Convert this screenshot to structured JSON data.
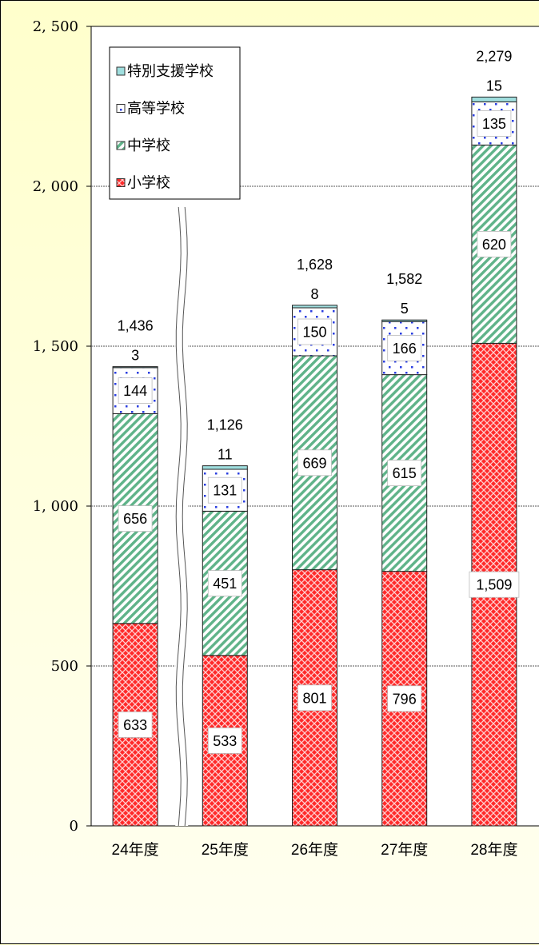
{
  "chart_data": {
    "type": "bar",
    "stacked": true,
    "categories": [
      "24年度",
      "25年度",
      "26年度",
      "27年度",
      "28年度"
    ],
    "series": [
      {
        "name": "小学校",
        "values": [
          633,
          533,
          801,
          796,
          1509
        ],
        "color": "#ff3333"
      },
      {
        "name": "中学校",
        "values": [
          656,
          451,
          669,
          615,
          620
        ],
        "color": "#66bb88"
      },
      {
        "name": "高等学校",
        "values": [
          144,
          131,
          150,
          166,
          135
        ],
        "color": "#3344dd"
      },
      {
        "name": "特別支援学校",
        "values": [
          3,
          11,
          8,
          5,
          15
        ],
        "color": "#99dddd"
      }
    ],
    "totals": [
      1436,
      1126,
      1628,
      1582,
      2279
    ],
    "total_labels": [
      "1,436",
      "1,126",
      "1,628",
      "1,582",
      "2,279"
    ],
    "segment_labels": [
      [
        "633",
        "533",
        "801",
        "796",
        "1,509"
      ],
      [
        "656",
        "451",
        "669",
        "615",
        "620"
      ],
      [
        "144",
        "131",
        "150",
        "166",
        "135"
      ],
      [
        "3",
        "11",
        "8",
        "5",
        "15"
      ]
    ],
    "y_ticks": [
      0,
      500,
      1000,
      1500,
      2000,
      2500
    ],
    "y_tick_labels": [
      "0",
      "500",
      "1, 000",
      "1, 500",
      "2, 000",
      "2, 500"
    ],
    "ylim": [
      0,
      2500
    ],
    "grid": true,
    "axis_break_between": [
      "24年度",
      "25年度"
    ],
    "legend": {
      "placement": "top-left",
      "order": [
        "特別支援学校",
        "高等学校",
        "中学校",
        "小学校"
      ]
    }
  }
}
